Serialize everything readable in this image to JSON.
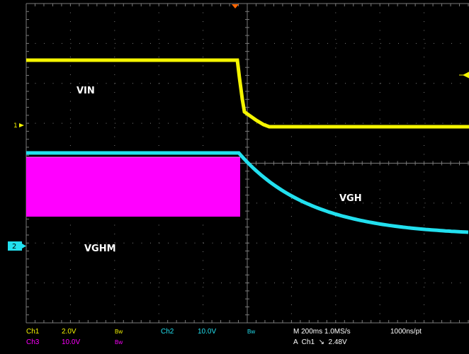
{
  "screen": {
    "trace_labels": {
      "vin": "VIN",
      "vgh": "VGH",
      "vghm": "VGHM"
    },
    "channel_markers": {
      "ch1": "1",
      "ch2": "2"
    },
    "status": {
      "row1": {
        "ch1_name": "Ch1",
        "ch1_scale": "2.0V",
        "ch1_bw": "Bw",
        "ch2_name": "Ch2",
        "ch2_scale": "10.0V",
        "ch2_bw": "Bw",
        "timebase": "M 200ms 1.0MS/s",
        "record": "1000ns/pt"
      },
      "row2": {
        "ch3_name": "Ch3",
        "ch3_scale": "10.0V",
        "ch3_bw": "Bw",
        "trigger": "A  Ch1  ↘  2.48V"
      }
    }
  },
  "colors": {
    "ch1": "#f5f500",
    "ch2": "#22e0ef",
    "ch3": "#ff00ff",
    "grid": "#7a7a7a",
    "trigger": "#ff6600"
  }
}
